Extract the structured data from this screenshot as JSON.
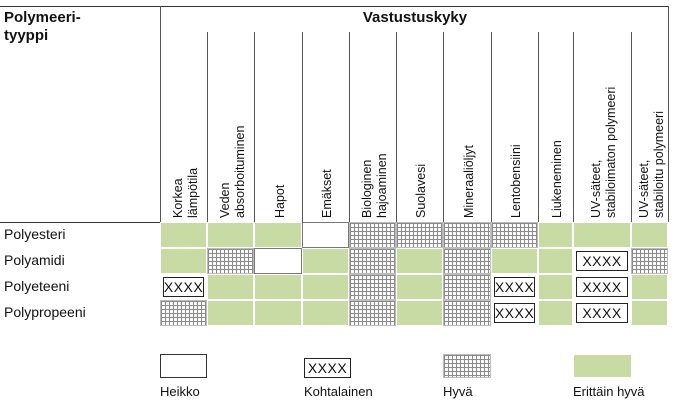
{
  "table": {
    "header_left": [
      "Polymeeri-",
      "tyyppi"
    ],
    "header_top": "Vastustuskyky",
    "columns": [
      [
        "Korkea",
        "lämpötila"
      ],
      [
        "Veden",
        "absorboituminen"
      ],
      [
        "Hapot"
      ],
      [
        "Emäkset"
      ],
      [
        "Biologinen",
        "hajoaminen"
      ],
      [
        "Suolavesi"
      ],
      [
        "Mineraaliöljyt"
      ],
      [
        "Lentobensiini"
      ],
      [
        "Liukeneminen"
      ],
      [
        "UV-säteet,",
        "stabiloimaton polymeeri"
      ],
      [
        "UV-säteet,",
        "stabiloitu polymeeri"
      ]
    ],
    "cell_text": "XXXX",
    "rows": [
      {
        "label": "Polyesteri",
        "cells": [
          "g",
          "g",
          "g",
          "w",
          "h",
          "h",
          "h",
          "h",
          "g",
          "g",
          "g"
        ]
      },
      {
        "label": "Polyamidi",
        "cells": [
          "g",
          "h",
          "w",
          "g",
          "h",
          "g",
          "h",
          "g",
          "g",
          "x",
          "h"
        ]
      },
      {
        "label": "Polyeteeni",
        "cells": [
          "x",
          "g",
          "g",
          "g",
          "h",
          "g",
          "h",
          "x",
          "g",
          "x",
          "g"
        ]
      },
      {
        "label": "Polypropeeni",
        "cells": [
          "h",
          "g",
          "g",
          "g",
          "h",
          "g",
          "h",
          "x",
          "g",
          "x",
          "g"
        ]
      }
    ]
  },
  "legend": [
    {
      "type": "w",
      "label": "Heikko"
    },
    {
      "type": "x",
      "label": "Kohtalainen",
      "text": "XXXX"
    },
    {
      "type": "h",
      "label": "Hyvä"
    },
    {
      "type": "g",
      "label": "Erittäin hyvä"
    }
  ]
}
